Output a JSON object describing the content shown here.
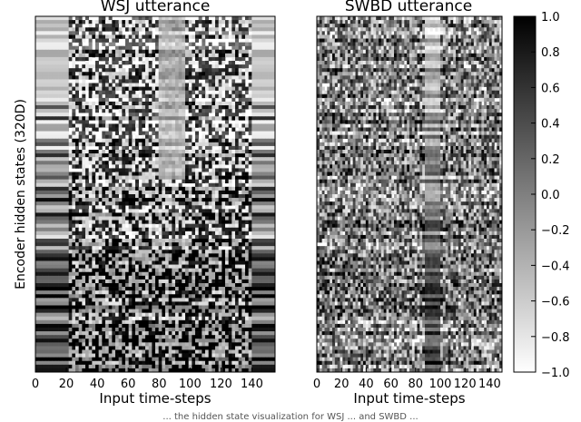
{
  "chart_data": [
    {
      "type": "heatmap",
      "title": "WSJ utterance",
      "xlabel": "Input time-steps",
      "ylabel": "Encoder hidden states (320D)",
      "xlim": [
        0,
        155
      ],
      "xticks": [
        0,
        20,
        40,
        60,
        80,
        100,
        120,
        140
      ],
      "rows": 320,
      "colormap": "white-to-black",
      "value_range": [
        -1.0,
        1.0
      ]
    },
    {
      "type": "heatmap",
      "title": "SWBD utterance",
      "xlabel": "Input time-steps",
      "ylabel": "",
      "xlim": [
        0,
        150
      ],
      "xticks": [
        0,
        20,
        40,
        60,
        80,
        100,
        120,
        140
      ],
      "rows": 320,
      "colormap": "white-to-black",
      "value_range": [
        -1.0,
        1.0
      ]
    }
  ],
  "colorbar": {
    "ticks": [
      "1.0",
      "0.8",
      "0.6",
      "0.4",
      "0.2",
      "0.0",
      "−0.2",
      "−0.4",
      "−0.6",
      "−0.8",
      "−1.0"
    ],
    "min": -1.0,
    "max": 1.0,
    "colors": {
      "high": "#000000",
      "low": "#ffffff"
    }
  },
  "caption": "... the hidden state visualization for WSJ ... and SWBD ..."
}
